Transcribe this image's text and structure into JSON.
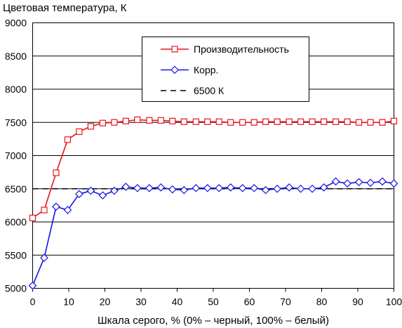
{
  "chart_data": {
    "type": "line",
    "title": "",
    "ylabel": "Цветовая температура, К",
    "xlabel": "Шкала серого, % (0% – черный, 100% – белый)",
    "xlim": [
      0,
      100
    ],
    "ylim": [
      5000,
      9000
    ],
    "xticks": [
      "0",
      "10",
      "20",
      "30",
      "40",
      "50",
      "60",
      "70",
      "80",
      "90",
      "100"
    ],
    "yticks": [
      "5000",
      "5500",
      "6000",
      "6500",
      "7000",
      "7500",
      "8000",
      "8500",
      "9000"
    ],
    "grid": "horizontal",
    "legend_position": "top-right",
    "series": [
      {
        "name": "Производительность",
        "color": "#e8141c",
        "marker": "square",
        "x": [
          0,
          3.2,
          6.5,
          9.7,
          12.9,
          16.1,
          19.4,
          22.6,
          25.8,
          29.0,
          32.3,
          35.5,
          38.7,
          41.9,
          45.2,
          48.4,
          51.6,
          54.8,
          58.1,
          61.3,
          64.5,
          67.7,
          71.0,
          74.2,
          77.4,
          80.6,
          83.9,
          87.1,
          90.3,
          93.5,
          96.8,
          100
        ],
        "y": [
          6060,
          6180,
          6740,
          7240,
          7360,
          7440,
          7490,
          7500,
          7520,
          7540,
          7530,
          7530,
          7520,
          7510,
          7510,
          7510,
          7510,
          7500,
          7500,
          7500,
          7510,
          7510,
          7510,
          7510,
          7510,
          7510,
          7510,
          7510,
          7500,
          7500,
          7500,
          7520
        ]
      },
      {
        "name": "Корр.",
        "color": "#1414e6",
        "marker": "diamond",
        "x": [
          0,
          3.2,
          6.5,
          9.7,
          12.9,
          16.1,
          19.4,
          22.6,
          25.8,
          29.0,
          32.3,
          35.5,
          38.7,
          41.9,
          45.2,
          48.4,
          51.6,
          54.8,
          58.1,
          61.3,
          64.5,
          67.7,
          71.0,
          74.2,
          77.4,
          80.6,
          83.9,
          87.1,
          90.3,
          93.5,
          96.8,
          100
        ],
        "y": [
          5040,
          5460,
          6230,
          6180,
          6420,
          6470,
          6400,
          6470,
          6530,
          6510,
          6510,
          6520,
          6490,
          6480,
          6510,
          6510,
          6510,
          6520,
          6510,
          6510,
          6480,
          6500,
          6520,
          6500,
          6500,
          6520,
          6610,
          6580,
          6600,
          6590,
          6610,
          6580
        ]
      },
      {
        "name": "6500 К",
        "color": "#000000",
        "marker": "none",
        "dashed": true,
        "x": [
          0,
          100
        ],
        "y": [
          6500,
          6500
        ]
      }
    ]
  }
}
